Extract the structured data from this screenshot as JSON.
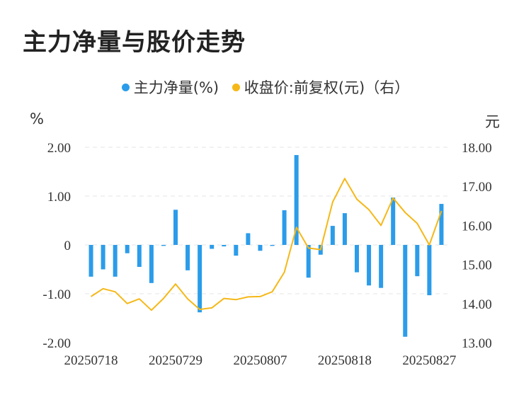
{
  "title": "主力净量与股价走势",
  "legend": {
    "series1": "主力净量(%)",
    "series2": "收盘价:前复权(元)（右）"
  },
  "colors": {
    "bar": "#2b9cea",
    "line": "#f5b818"
  },
  "units": {
    "left": "%",
    "right": "元"
  },
  "chart_data": {
    "type": "bar",
    "y_left": {
      "ylim": [
        -2.0,
        2.0
      ],
      "ticks": [
        "2.00",
        "1.00",
        "0",
        "-1.00",
        "-2.00"
      ],
      "tick_values": [
        2,
        1,
        0,
        -1,
        -2
      ]
    },
    "y_right": {
      "ylim": [
        13.0,
        18.0
      ],
      "ticks": [
        "18.00",
        "17.00",
        "16.00",
        "15.00",
        "14.00",
        "13.00"
      ],
      "tick_values": [
        18,
        17,
        16,
        15,
        14,
        13
      ]
    },
    "x_tick_labels": [
      "20250718",
      "20250729",
      "20250807",
      "20250818",
      "20250827"
    ],
    "x_tick_index": [
      0,
      7,
      14,
      21,
      28
    ],
    "grid": true,
    "legend_position": "top-center",
    "series": [
      {
        "name": "主力净量(%)",
        "type": "bar",
        "axis": "left",
        "values": [
          -0.65,
          -0.5,
          -0.65,
          -0.17,
          -0.45,
          -0.78,
          -0.02,
          0.72,
          -0.52,
          -1.38,
          -0.08,
          -0.03,
          -0.22,
          0.24,
          -0.12,
          -0.02,
          0.71,
          1.84,
          -0.67,
          -0.2,
          0.39,
          0.65,
          -0.56,
          -0.83,
          -0.88,
          0.97,
          -1.88,
          -0.64,
          -1.03,
          0.84
        ]
      },
      {
        "name": "收盘价:前复权(元)（右）",
        "type": "line",
        "axis": "right",
        "values": [
          14.18,
          14.38,
          14.3,
          14.0,
          14.12,
          13.83,
          14.13,
          14.5,
          14.12,
          13.85,
          13.89,
          14.13,
          14.1,
          14.17,
          14.18,
          14.3,
          14.8,
          15.95,
          15.42,
          15.38,
          16.6,
          17.2,
          16.67,
          16.4,
          16.0,
          16.7,
          16.33,
          16.05,
          15.5,
          16.37
        ]
      }
    ]
  }
}
